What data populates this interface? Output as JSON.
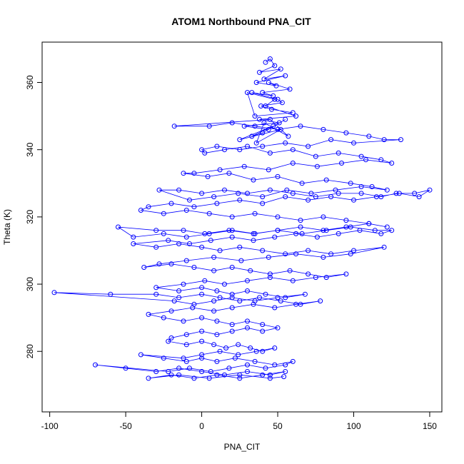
{
  "chart_data": {
    "type": "scatter",
    "title": "ATOM1 Northbound PNA_CIT",
    "xlabel": "PNA_CIT",
    "ylabel": "Theta (K)",
    "xlim": [
      -105,
      158
    ],
    "ylim": [
      262,
      372
    ],
    "x_ticks": [
      -100,
      -50,
      0,
      50,
      100,
      150
    ],
    "y_ticks": [
      280,
      300,
      320,
      340,
      360
    ],
    "x_tick_labels": [
      "-100",
      "-50",
      "0",
      "50",
      "100",
      "150"
    ],
    "y_tick_labels": [
      "280",
      "300",
      "320",
      "340",
      "360"
    ],
    "grid": false,
    "legend": "none",
    "marker": "open-circle",
    "connected": true,
    "colors": {
      "series": "#0000ff",
      "axis": "#000000"
    },
    "series": [
      {
        "x": [
          42,
          45,
          48,
          38,
          52,
          41,
          55,
          36,
          49,
          44,
          58,
          40,
          47,
          33,
          50,
          53,
          39,
          46,
          60,
          35,
          30,
          48,
          42,
          62,
          38,
          51,
          28,
          44,
          55,
          40,
          33,
          47,
          25,
          52,
          36,
          41,
          57,
          45,
          -18,
          5,
          20,
          35,
          50,
          65,
          80,
          95,
          110,
          120,
          131,
          100,
          85,
          70,
          55,
          40,
          25,
          10,
          0,
          2,
          15,
          30,
          45,
          60,
          75,
          90,
          105,
          118,
          125,
          108,
          92,
          76,
          60,
          44,
          28,
          12,
          -5,
          -12,
          4,
          18,
          34,
          50,
          66,
          82,
          98,
          112,
          122,
          105,
          88,
          72,
          56,
          40,
          24,
          8,
          -8,
          -28,
          -15,
          0,
          15,
          30,
          45,
          60,
          75,
          90,
          105,
          118,
          128,
          140,
          150,
          143,
          130,
          115,
          100,
          85,
          70,
          55,
          40,
          25,
          10,
          -5,
          -20,
          -35,
          -40,
          -25,
          -10,
          5,
          20,
          35,
          50,
          65,
          80,
          95,
          110,
          122,
          110,
          95,
          80,
          65,
          50,
          35,
          20,
          5,
          -10,
          -25,
          -45,
          -55,
          -30,
          -12,
          2,
          18,
          34,
          50,
          66,
          82,
          98,
          114,
          125,
          118,
          104,
          90,
          76,
          62,
          48,
          34,
          20,
          6,
          -8,
          -22,
          -45,
          -30,
          -15,
          0,
          12,
          25,
          40,
          55,
          70,
          85,
          100,
          120,
          98,
          80,
          62,
          44,
          26,
          8,
          -10,
          -28,
          -38,
          -20,
          -5,
          8,
          20,
          32,
          45,
          58,
          70,
          82,
          95,
          75,
          60,
          45,
          30,
          15,
          2,
          -12,
          -30,
          -15,
          0,
          10,
          20,
          30,
          42,
          55,
          68,
          50,
          35,
          20,
          8,
          -5,
          -18,
          -97,
          -60,
          -30,
          -15,
          0,
          12,
          25,
          38,
          52,
          65,
          78,
          62,
          48,
          34,
          20,
          8,
          -6,
          -20,
          -35,
          -25,
          -12,
          0,
          10,
          20,
          30,
          40,
          50,
          40,
          30,
          20,
          10,
          0,
          -10,
          -20,
          -22,
          -10,
          0,
          8,
          16,
          24,
          32,
          40,
          48,
          36,
          24,
          12,
          0,
          -12,
          -40,
          -25,
          -10,
          0,
          10,
          22,
          35,
          48,
          60,
          55,
          42,
          30,
          18,
          6,
          -8,
          -22,
          -70,
          -50,
          -30,
          -15,
          0,
          15,
          30,
          45,
          55,
          40,
          25,
          10,
          -5,
          -20,
          -35,
          -15,
          5,
          25,
          45,
          54
        ],
        "y": [
          366,
          367,
          365,
          363,
          364,
          361,
          362,
          360,
          359,
          360,
          358,
          357,
          356,
          357,
          355,
          354,
          353,
          352,
          351,
          350,
          357,
          355,
          353,
          350,
          349,
          348,
          347,
          346,
          349,
          345,
          344,
          347,
          343,
          346,
          342,
          348,
          344,
          349,
          347,
          347,
          348,
          347,
          346,
          347,
          346,
          345,
          344,
          343,
          343,
          342,
          343,
          341,
          342,
          341,
          340,
          341,
          340,
          339,
          340,
          341,
          339,
          340,
          338,
          339,
          338,
          337,
          336,
          337,
          336,
          335,
          336,
          334,
          335,
          334,
          333,
          333,
          332,
          333,
          331,
          332,
          330,
          331,
          330,
          329,
          328,
          329,
          328,
          327,
          328,
          326,
          327,
          326,
          325,
          328,
          328,
          327,
          328,
          327,
          328,
          327,
          326,
          327,
          327,
          326,
          327,
          327,
          328,
          326,
          327,
          326,
          325,
          326,
          325,
          326,
          324,
          325,
          324,
          323,
          324,
          323,
          322,
          321,
          322,
          321,
          320,
          321,
          320,
          319,
          320,
          319,
          318,
          317,
          318,
          317,
          316,
          317,
          316,
          315,
          316,
          315,
          314,
          315,
          314,
          317,
          316,
          316,
          315,
          316,
          315,
          316,
          315,
          316,
          317,
          316,
          316,
          315,
          316,
          315,
          314,
          315,
          314,
          313,
          314,
          313,
          312,
          313,
          312,
          311,
          312,
          311,
          310,
          311,
          310,
          309,
          310,
          309,
          310,
          311,
          309,
          308,
          309,
          308,
          307,
          308,
          307,
          306,
          305,
          306,
          305,
          304,
          305,
          304,
          303,
          304,
          303,
          302,
          303,
          302,
          301,
          302,
          301,
          300,
          301,
          300,
          299,
          298,
          299,
          298,
          297,
          298,
          297,
          296,
          297,
          296,
          295,
          296,
          295,
          294,
          295,
          297.5,
          297,
          297,
          296,
          297,
          296,
          295,
          296,
          295,
          294,
          295,
          294,
          293,
          294,
          293,
          292,
          293,
          292,
          291,
          290,
          289,
          290,
          289,
          288,
          289,
          288,
          287,
          286,
          287,
          286,
          285,
          286,
          285,
          284,
          283,
          282,
          283,
          282,
          281,
          282,
          281,
          280,
          281,
          280,
          279,
          280,
          279,
          278,
          279,
          278,
          277,
          278,
          277,
          278,
          277,
          276,
          277,
          276,
          275,
          276,
          275,
          274,
          275,
          274,
          276,
          275,
          274,
          275,
          274,
          273,
          274,
          273,
          274,
          273,
          272,
          273,
          272,
          273,
          272,
          273,
          272,
          273,
          272,
          272.5
        ]
      }
    ]
  }
}
